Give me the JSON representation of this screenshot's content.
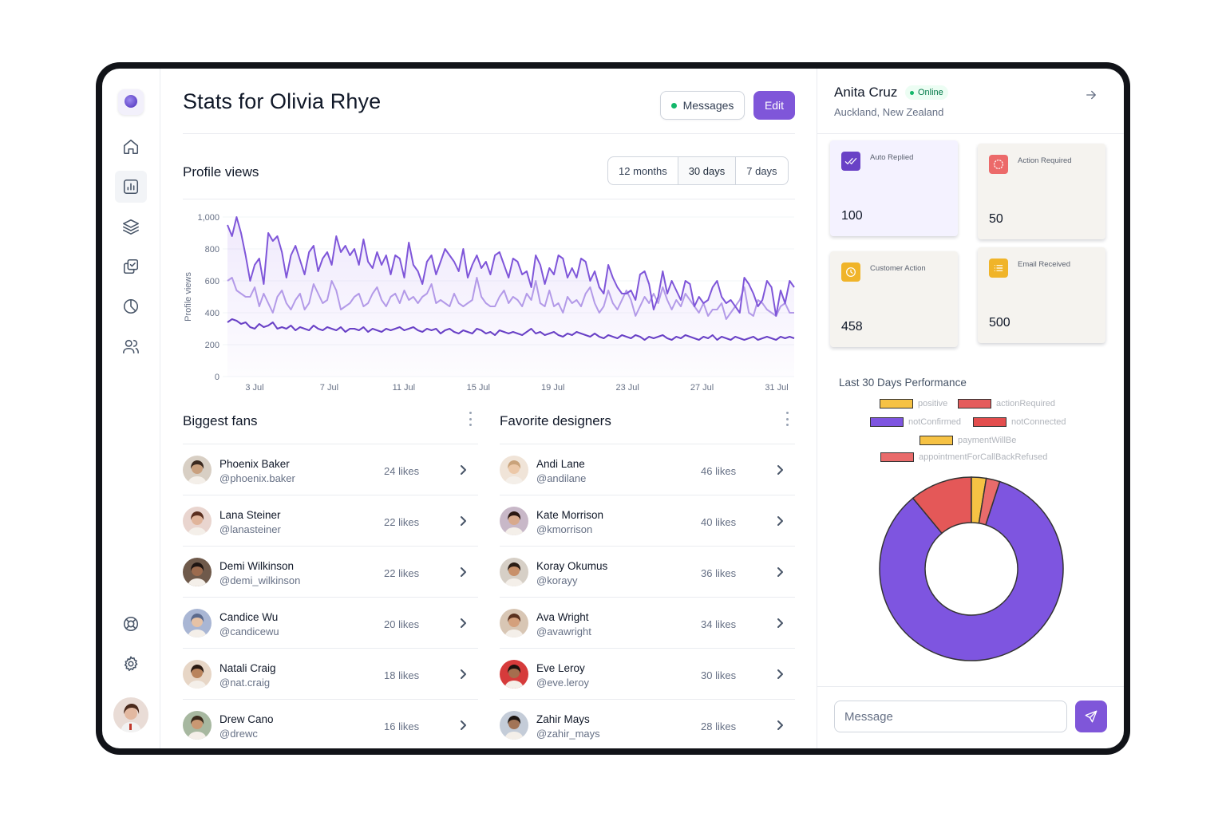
{
  "page": {
    "title": "Stats for Olivia Rhye"
  },
  "header": {
    "messages_label": "Messages",
    "edit_label": "Edit"
  },
  "sidebar": {
    "nav": [
      "home-icon",
      "chart-icon",
      "layers-icon",
      "tasks-icon",
      "pie-chart-icon",
      "users-icon"
    ],
    "bottom": [
      "help-icon",
      "settings-icon"
    ]
  },
  "profile_views": {
    "title": "Profile views",
    "ranges": [
      "12 months",
      "30 days",
      "7 days"
    ],
    "selected_range": "30 days"
  },
  "chart_data": {
    "type": "line",
    "ylabel": "Profile views",
    "xlabel": "",
    "ylim": [
      0,
      1000
    ],
    "y_ticks": [
      "1,000",
      "800",
      "600",
      "400",
      "200",
      "0"
    ],
    "x_ticks": [
      "3 Jul",
      "7 Jul",
      "11 Jul",
      "15 Jul",
      "19 Jul",
      "23 Jul",
      "27 Jul",
      "31 Jul"
    ],
    "grid": true,
    "series": [
      {
        "name": "series-top",
        "color": "#7f56d9",
        "values": [
          950,
          880,
          1000,
          900,
          760,
          600,
          700,
          740,
          580,
          900,
          850,
          880,
          780,
          620,
          760,
          820,
          730,
          640,
          780,
          820,
          660,
          740,
          780,
          700,
          880,
          780,
          820,
          760,
          800,
          700,
          860,
          720,
          680,
          780,
          700,
          760,
          640,
          760,
          740,
          620,
          840,
          700,
          660,
          580,
          720,
          760,
          640,
          720,
          800,
          760,
          720,
          660,
          800,
          620,
          700,
          760,
          680,
          720,
          640,
          760,
          780,
          700,
          620,
          740,
          720,
          640,
          660,
          560,
          760,
          700,
          580,
          680,
          640,
          760,
          740,
          620,
          680,
          620,
          740,
          720,
          600,
          660,
          560,
          520,
          700,
          620,
          560,
          520,
          520,
          540,
          480,
          640,
          660,
          580,
          420,
          500,
          660,
          520,
          600,
          540,
          480,
          600,
          580,
          440,
          500,
          460,
          480,
          560,
          600,
          500,
          460,
          480,
          440,
          400,
          620,
          580,
          520,
          440,
          480,
          600,
          560,
          380,
          540,
          460,
          600,
          560
        ]
      },
      {
        "name": "series-mid",
        "color": "#b39ae8",
        "values": [
          600,
          620,
          540,
          520,
          500,
          500,
          560,
          440,
          520,
          460,
          400,
          500,
          540,
          460,
          420,
          480,
          520,
          420,
          460,
          580,
          520,
          460,
          480,
          600,
          540,
          420,
          440,
          460,
          500,
          520,
          440,
          460,
          520,
          560,
          480,
          440,
          500,
          520,
          460,
          540,
          480,
          500,
          460,
          500,
          520,
          580,
          460,
          480,
          460,
          440,
          520,
          460,
          440,
          460,
          480,
          620,
          500,
          460,
          440,
          440,
          500,
          540,
          460,
          500,
          480,
          440,
          520,
          480,
          600,
          460,
          440,
          540,
          440,
          460,
          400,
          500,
          460,
          480,
          440,
          520,
          560,
          460,
          400,
          440,
          540,
          460,
          420,
          480,
          540,
          480,
          380,
          440,
          500,
          460,
          520,
          460,
          560,
          480,
          420,
          480,
          440,
          520,
          480,
          440,
          400,
          460,
          380,
          420,
          420,
          460,
          360,
          400,
          440,
          480,
          560,
          400,
          380,
          480,
          460,
          420,
          400,
          380,
          440,
          460,
          400,
          400
        ]
      },
      {
        "name": "series-low",
        "color": "#6941c6",
        "values": [
          340,
          360,
          350,
          330,
          340,
          310,
          300,
          330,
          310,
          320,
          340,
          300,
          310,
          300,
          320,
          290,
          310,
          300,
          290,
          320,
          300,
          290,
          310,
          300,
          290,
          310,
          280,
          300,
          300,
          290,
          310,
          280,
          300,
          290,
          280,
          300,
          290,
          300,
          310,
          290,
          300,
          310,
          290,
          280,
          300,
          290,
          300,
          270,
          290,
          300,
          280,
          270,
          290,
          280,
          270,
          300,
          290,
          270,
          280,
          260,
          290,
          280,
          270,
          280,
          270,
          260,
          280,
          300,
          270,
          280,
          260,
          270,
          280,
          260,
          250,
          270,
          260,
          280,
          270,
          260,
          250,
          270,
          250,
          240,
          260,
          250,
          240,
          260,
          250,
          240,
          260,
          250,
          230,
          250,
          240,
          250,
          260,
          240,
          230,
          250,
          240,
          260,
          250,
          240,
          230,
          250,
          240,
          260,
          230,
          250,
          240,
          230,
          250,
          240,
          230,
          240,
          250,
          230,
          240,
          250,
          240,
          230,
          250,
          240,
          250,
          240
        ]
      }
    ]
  },
  "biggest_fans": {
    "title": "Biggest fans",
    "items": [
      {
        "name": "Phoenix Baker",
        "handle": "@phoenix.baker",
        "likes": "24 likes",
        "skin": "#c9a07e",
        "hair": "#3b2a20",
        "bg": "#d8cfc4"
      },
      {
        "name": "Lana Steiner",
        "handle": "@lanasteiner",
        "likes": "22 likes",
        "skin": "#e0b49a",
        "hair": "#5a2e1e",
        "bg": "#e9d5cf"
      },
      {
        "name": "Demi Wilkinson",
        "handle": "@demi_wilkinson",
        "likes": "22 likes",
        "skin": "#9c6b4e",
        "hair": "#1e1512",
        "bg": "#6f5a4b"
      },
      {
        "name": "Candice Wu",
        "handle": "@candicewu",
        "likes": "20 likes",
        "skin": "#e6c2a6",
        "hair": "#5b6a8d",
        "bg": "#a9b6d4"
      },
      {
        "name": "Natali Craig",
        "handle": "@nat.craig",
        "likes": "18 likes",
        "skin": "#b9835c",
        "hair": "#2a1a12",
        "bg": "#e7d6c6"
      },
      {
        "name": "Drew Cano",
        "handle": "@drewc",
        "likes": "16 likes",
        "skin": "#c99873",
        "hair": "#3a2a1c",
        "bg": "#a7b8a0"
      }
    ]
  },
  "favorite_designers": {
    "title": "Favorite designers",
    "items": [
      {
        "name": "Andi Lane",
        "handle": "@andilane",
        "likes": "46 likes",
        "skin": "#ecc8a8",
        "hair": "#c9a27a",
        "bg": "#f0e4d8"
      },
      {
        "name": "Kate Morrison",
        "handle": "@kmorrison",
        "likes": "40 likes",
        "skin": "#d8a98c",
        "hair": "#2a1712",
        "bg": "#c8b8c8"
      },
      {
        "name": "Koray Okumus",
        "handle": "@korayy",
        "likes": "36 likes",
        "skin": "#c8906a",
        "hair": "#2b1d15",
        "bg": "#d6cfc6"
      },
      {
        "name": "Ava Wright",
        "handle": "@avawright",
        "likes": "34 likes",
        "skin": "#d4a07c",
        "hair": "#5a3220",
        "bg": "#d8c6b4"
      },
      {
        "name": "Eve Leroy",
        "handle": "@eve.leroy",
        "likes": "30 likes",
        "skin": "#a56e4e",
        "hair": "#1b120e",
        "bg": "#d63b3b"
      },
      {
        "name": "Zahir Mays",
        "handle": "@zahir_mays",
        "likes": "28 likes",
        "skin": "#a27457",
        "hair": "#1d1612",
        "bg": "#c4ccd8"
      }
    ]
  },
  "contact": {
    "name": "Anita Cruz",
    "status": "Online",
    "location": "Auckland, New Zealand"
  },
  "cards": [
    {
      "label": "Auto Replied",
      "value": "100",
      "icon": "double-check-icon",
      "icon_bg": "#6941c6",
      "bg": "#f4f2ff"
    },
    {
      "label": "Action Required",
      "value": "50",
      "icon": "alert-dots-icon",
      "icon_bg": "#ec6a6a",
      "bg": "#f5f3ef"
    },
    {
      "label": "Customer Action",
      "value": "458",
      "icon": "clock-icon",
      "icon_bg": "#f0b429",
      "bg": "#f5f3ef"
    },
    {
      "label": "Email Received",
      "value": "500",
      "icon": "list-icon",
      "icon_bg": "#f0b429",
      "bg": "#f5f3ef"
    }
  ],
  "performance": {
    "title": "Last 30 Days Performance",
    "legend": [
      {
        "label": "positive",
        "color": "#f6c244"
      },
      {
        "label": "actionRequired",
        "color": "#e45c5c"
      },
      {
        "label": "notConfirmed",
        "color": "#7e55e0"
      },
      {
        "label": "notConnected",
        "color": "#e34d4d"
      },
      {
        "label": "paymentWillBe",
        "color": "#f6c244"
      },
      {
        "label": "appointmentForCallBackRefused",
        "color": "#e96b6b"
      }
    ],
    "donut": [
      {
        "label": "notConfirmed",
        "value": 84,
        "color": "#7e55e0"
      },
      {
        "label": "actionRequired",
        "value": 11,
        "color": "#e45858"
      },
      {
        "label": "positive",
        "value": 2.6,
        "color": "#f6c244"
      },
      {
        "label": "appointmentForCallBackRefused",
        "value": 2.4,
        "color": "#e96b6b"
      }
    ]
  },
  "composer": {
    "placeholder": "Message"
  }
}
